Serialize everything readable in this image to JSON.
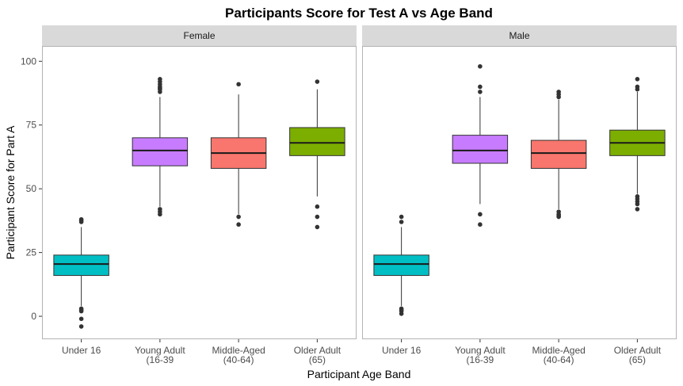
{
  "chart_data": {
    "type": "boxplot",
    "title": "Participants Score for Test A vs Age Band",
    "xlabel": "Participant Age Band",
    "ylabel": "Participant Score for Part A",
    "ylim": [
      -9,
      106
    ],
    "yticks": [
      0,
      25,
      50,
      75,
      100
    ],
    "grid": false,
    "legend": "none",
    "categories": [
      {
        "label": [
          "Under 16"
        ],
        "color": "#00BFC4"
      },
      {
        "label": [
          "Young Adult",
          "(16-39"
        ],
        "color": "#C77CFF"
      },
      {
        "label": [
          "Middle-Aged",
          "(40-64)"
        ],
        "color": "#F8766D"
      },
      {
        "label": [
          "Older Adult",
          "(65)"
        ],
        "color": "#7CAE00"
      }
    ],
    "facets": [
      {
        "name": "Female",
        "boxes": [
          {
            "min": 4,
            "q1": 16,
            "median": 20.5,
            "q3": 24,
            "max": 35,
            "outliers": [
              38,
              37.5,
              37,
              3,
              2.5,
              2,
              -1,
              -4
            ]
          },
          {
            "min": 43,
            "q1": 59,
            "median": 65,
            "q3": 70,
            "max": 86,
            "outliers": [
              93,
              92,
              91,
              90,
              89.5,
              89,
              88,
              42,
              41,
              40
            ]
          },
          {
            "min": 40,
            "q1": 58,
            "median": 64,
            "q3": 70,
            "max": 87,
            "outliers": [
              91,
              39,
              36
            ]
          },
          {
            "min": 47,
            "q1": 63,
            "median": 68,
            "q3": 74,
            "max": 89,
            "outliers": [
              92,
              43,
              39,
              35
            ]
          }
        ]
      },
      {
        "name": "Male",
        "boxes": [
          {
            "min": 4,
            "q1": 16,
            "median": 20.5,
            "q3": 24,
            "max": 35,
            "outliers": [
              39,
              37,
              3,
              2.5,
              2,
              1
            ]
          },
          {
            "min": 44,
            "q1": 60,
            "median": 65,
            "q3": 71,
            "max": 86,
            "outliers": [
              98,
              90,
              88,
              40,
              36
            ]
          },
          {
            "min": 42,
            "q1": 58,
            "median": 64,
            "q3": 69,
            "max": 85,
            "outliers": [
              88,
              87,
              86,
              41,
              40,
              39.5,
              39
            ]
          },
          {
            "min": 48,
            "q1": 63,
            "median": 68,
            "q3": 73,
            "max": 88,
            "outliers": [
              93,
              90,
              89,
              47,
              46,
              45,
              44,
              42
            ]
          }
        ]
      }
    ]
  }
}
